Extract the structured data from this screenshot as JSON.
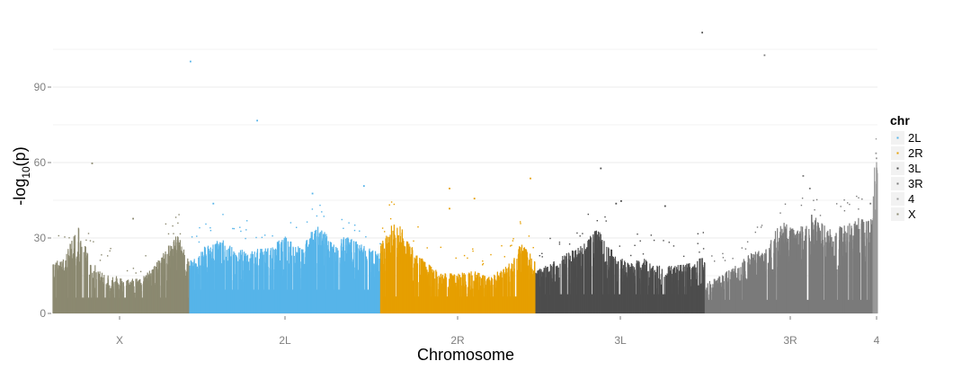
{
  "chart_data": {
    "type": "scatter",
    "subtype": "manhattan",
    "xlabel": "Chromosome",
    "ylabel_prefix": "-log",
    "ylabel_sub": "10",
    "ylabel_suffix": "(p)",
    "ylim": [
      0,
      115
    ],
    "yticks": [
      0,
      30,
      60,
      90
    ],
    "grid": true,
    "legend_position": "right",
    "legend": {
      "title": "chr",
      "entries": [
        {
          "name": "2L",
          "color": "#56B4E9"
        },
        {
          "name": "2R",
          "color": "#E69F00"
        },
        {
          "name": "3L",
          "color": "#4D4D4D"
        },
        {
          "name": "3R",
          "color": "#7A7A7A"
        },
        {
          "name": "4",
          "color": "#999999"
        },
        {
          "name": "X",
          "color": "#8B8970"
        }
      ]
    },
    "chromosomes": [
      {
        "name": "X",
        "tick_label": "X",
        "color": "#8B8970",
        "band_max": [
          20,
          24,
          35,
          22,
          16,
          15,
          14,
          14,
          18,
          25,
          32,
          20
        ],
        "outliers": [
          [
            0.28,
            60
          ],
          [
            0.58,
            38
          ]
        ]
      },
      {
        "name": "2L",
        "tick_label": "2L",
        "color": "#56B4E9",
        "band_max": [
          21,
          27,
          30,
          25,
          27,
          26,
          31,
          26,
          36,
          29,
          31,
          27,
          24
        ],
        "outliers": [
          [
            0.0,
            100.5
          ],
          [
            0.12,
            44
          ],
          [
            0.35,
            77
          ],
          [
            0.64,
            48
          ],
          [
            0.91,
            51
          ]
        ]
      },
      {
        "name": "2R",
        "tick_label": "2R",
        "color": "#E69F00",
        "band_max": [
          28,
          38,
          27,
          20,
          16,
          16,
          17,
          15,
          18,
          28,
          22
        ],
        "outliers": [
          [
            0.44,
            50
          ],
          [
            0.44,
            42
          ],
          [
            0.6,
            46
          ],
          [
            0.96,
            54
          ]
        ]
      },
      {
        "name": "3L",
        "tick_label": "3L",
        "color": "#4D4D4D",
        "band_max": [
          17,
          20,
          24,
          27,
          34,
          25,
          20,
          22,
          20,
          19,
          20,
          23
        ],
        "outliers": [
          [
            0.38,
            58
          ],
          [
            0.47,
            44
          ],
          [
            0.5,
            45
          ],
          [
            0.76,
            43
          ],
          [
            0.98,
            112
          ]
        ]
      },
      {
        "name": "3R",
        "tick_label": "3R",
        "color": "#7A7A7A",
        "band_max": [
          12,
          15,
          19,
          24,
          27,
          37,
          33,
          40,
          34,
          35,
          38,
          41
        ],
        "outliers": [
          [
            0.35,
            103
          ],
          [
            0.58,
            55
          ],
          [
            0.62,
            50
          ],
          [
            0.98,
            44
          ]
        ]
      },
      {
        "name": "4",
        "tick_label": "4",
        "color": "#999999",
        "band_max": [
          62
        ],
        "outliers": [
          [
            0.5,
            64
          ],
          [
            0.6,
            62
          ]
        ]
      }
    ]
  }
}
